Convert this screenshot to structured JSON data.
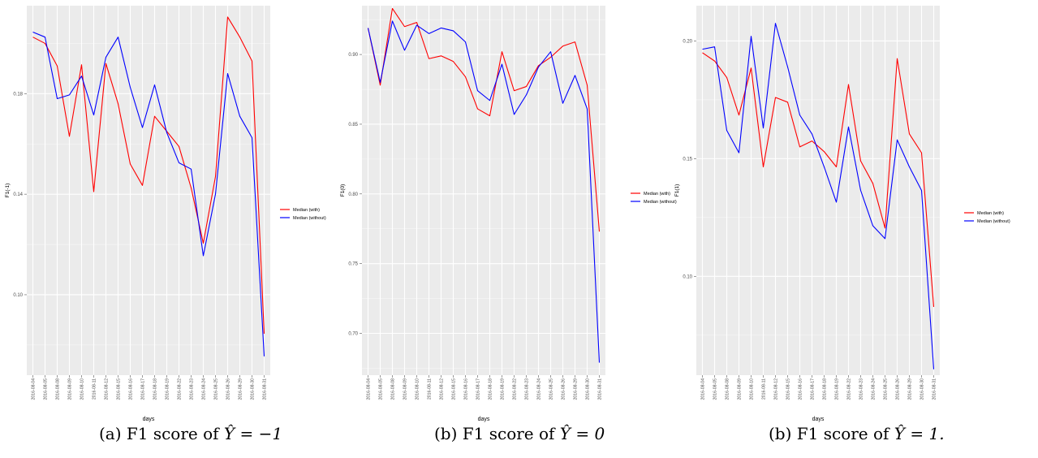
{
  "chart_data": [
    {
      "type": "line",
      "caption": "(a) F1 score of",
      "caption_math": "Ŷ = −1",
      "xlabel": "days",
      "ylabel": "F1(-1)",
      "ylim": [
        0.068,
        0.215
      ],
      "yticks": [
        0.1,
        0.14,
        0.18
      ],
      "ytick_labels": [
        "0.10",
        "0.14",
        "0.18"
      ],
      "grid": true,
      "legend_position": "right",
      "categories": [
        "2016-08-04",
        "2016-08-05",
        "2016-08-08",
        "2016-08-09",
        "2016-08-10",
        "2016-08-11",
        "2016-08-12",
        "2016-08-15",
        "2016-08-16",
        "2016-08-17",
        "2016-08-18",
        "2016-08-19",
        "2016-08-22",
        "2016-08-23",
        "2016-08-24",
        "2016-08-25",
        "2016-08-26",
        "2016-08-29",
        "2016-08-30",
        "2016-08-31"
      ],
      "series": [
        {
          "name": "Median (with)",
          "color": "#ff0000",
          "values": [
            0.2025,
            0.2,
            0.191,
            0.163,
            0.1915,
            0.141,
            0.192,
            0.176,
            0.152,
            0.1435,
            0.171,
            0.165,
            0.159,
            0.1425,
            0.1205,
            0.147,
            0.2105,
            0.2025,
            0.193,
            0.0845
          ]
        },
        {
          "name": "Median (without)",
          "color": "#0000ff",
          "values": [
            0.2045,
            0.2025,
            0.178,
            0.1795,
            0.187,
            0.1715,
            0.1945,
            0.2025,
            0.1825,
            0.1665,
            0.1835,
            0.1645,
            0.1525,
            0.15,
            0.1155,
            0.14,
            0.188,
            0.171,
            0.1625,
            0.0755
          ]
        }
      ]
    },
    {
      "type": "line",
      "caption": "(b) F1 score of",
      "caption_math": "Ŷ = 0",
      "xlabel": "days",
      "ylabel": "F1(0)",
      "ylim": [
        0.67,
        0.935
      ],
      "yticks": [
        0.7,
        0.75,
        0.8,
        0.85,
        0.9
      ],
      "ytick_labels": [
        "0.70",
        "0.75",
        "0.80",
        "0.85",
        "0.90"
      ],
      "grid": true,
      "legend_position": "right",
      "categories": [
        "2016-08-04",
        "2016-08-05",
        "2016-08-08",
        "2016-08-09",
        "2016-08-10",
        "2016-08-11",
        "2016-08-12",
        "2016-08-15",
        "2016-08-16",
        "2016-08-17",
        "2016-08-18",
        "2016-08-19",
        "2016-08-22",
        "2016-08-23",
        "2016-08-24",
        "2016-08-25",
        "2016-08-26",
        "2016-08-29",
        "2016-08-30",
        "2016-08-31"
      ],
      "series": [
        {
          "name": "Median (with)",
          "color": "#ff0000",
          "values": [
            0.919,
            0.878,
            0.933,
            0.92,
            0.923,
            0.897,
            0.899,
            0.895,
            0.884,
            0.861,
            0.856,
            0.902,
            0.874,
            0.877,
            0.892,
            0.898,
            0.906,
            0.909,
            0.878,
            0.773
          ]
        },
        {
          "name": "Median (without)",
          "color": "#0000ff",
          "values": [
            0.919,
            0.88,
            0.924,
            0.903,
            0.921,
            0.915,
            0.919,
            0.917,
            0.909,
            0.874,
            0.867,
            0.893,
            0.857,
            0.871,
            0.891,
            0.902,
            0.865,
            0.885,
            0.861,
            0.679
          ]
        }
      ]
    },
    {
      "type": "line",
      "caption": "(b) F1 score of",
      "caption_math": "Ŷ = 1.",
      "xlabel": "days",
      "ylabel": "F1(1)",
      "ylim": [
        0.058,
        0.215
      ],
      "yticks": [
        0.1,
        0.15,
        0.2
      ],
      "ytick_labels": [
        "0.10",
        "0.15",
        "0.20"
      ],
      "grid": true,
      "legend_position": "right",
      "categories": [
        "2016-08-04",
        "2016-08-05",
        "2016-08-08",
        "2016-08-09",
        "2016-08-10",
        "2016-08-11",
        "2016-08-12",
        "2016-08-15",
        "2016-08-16",
        "2016-08-17",
        "2016-08-18",
        "2016-08-19",
        "2016-08-22",
        "2016-08-23",
        "2016-08-24",
        "2016-08-25",
        "2016-08-26",
        "2016-08-29",
        "2016-08-30",
        "2016-08-31"
      ],
      "series": [
        {
          "name": "Median (with)",
          "color": "#ff0000",
          "values": [
            0.195,
            0.1915,
            0.1845,
            0.1685,
            0.1885,
            0.1465,
            0.176,
            0.174,
            0.155,
            0.1575,
            0.153,
            0.1465,
            0.1815,
            0.149,
            0.1395,
            0.1205,
            0.1925,
            0.1605,
            0.1525,
            0.087
          ]
        },
        {
          "name": "Median (without)",
          "color": "#0000ff",
          "values": [
            0.1965,
            0.1975,
            0.162,
            0.1525,
            0.202,
            0.163,
            0.2075,
            0.189,
            0.1685,
            0.1605,
            0.1465,
            0.1315,
            0.1635,
            0.1365,
            0.1215,
            0.116,
            0.158,
            0.1465,
            0.1365,
            0.0605
          ]
        }
      ]
    }
  ]
}
